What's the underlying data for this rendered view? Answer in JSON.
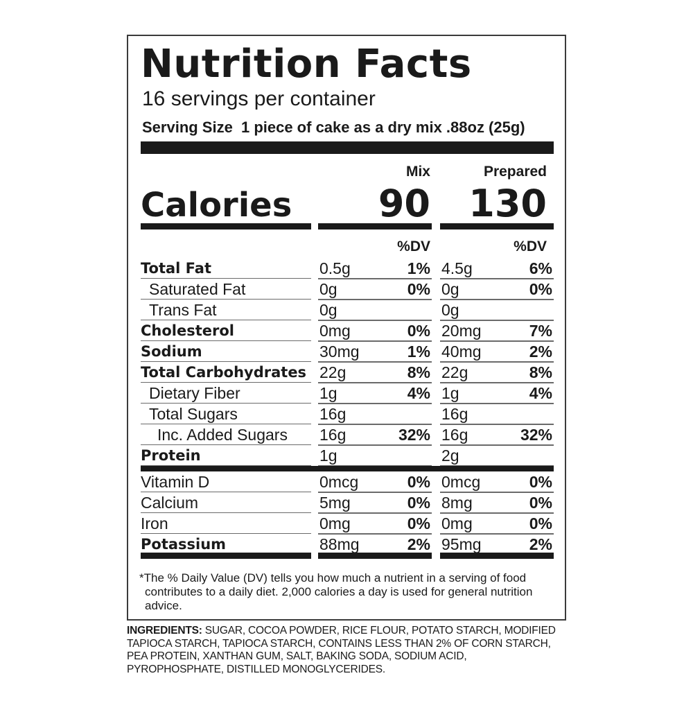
{
  "title": "Nutrition Facts",
  "servings_per_container": "16 servings per container",
  "serving_size_label": "Serving Size",
  "serving_size_value": "1 piece of cake as a dry mix .88oz (25g)",
  "columns": {
    "mix": "Mix",
    "prepared": "Prepared"
  },
  "calories": {
    "label": "Calories",
    "mix": "90",
    "prepared": "130"
  },
  "dv_header": "%DV",
  "nutrients": [
    {
      "name": "Total Fat",
      "mix_amount": "0.5g",
      "mix_dv": "1%",
      "prep_amount": "4.5g",
      "prep_dv": "6%"
    },
    {
      "name": "Saturated Fat",
      "mix_amount": "0g",
      "mix_dv": "0%",
      "prep_amount": "0g",
      "prep_dv": "0%"
    },
    {
      "name": "Trans Fat",
      "mix_amount": "0g",
      "mix_dv": "",
      "prep_amount": "0g",
      "prep_dv": ""
    },
    {
      "name": "Cholesterol",
      "mix_amount": "0mg",
      "mix_dv": "0%",
      "prep_amount": "20mg",
      "prep_dv": "7%"
    },
    {
      "name": "Sodium",
      "mix_amount": "30mg",
      "mix_dv": "1%",
      "prep_amount": "40mg",
      "prep_dv": "2%"
    },
    {
      "name": "Total Carbohydrates",
      "mix_amount": "22g",
      "mix_dv": "8%",
      "prep_amount": "22g",
      "prep_dv": "8%"
    },
    {
      "name": "Dietary Fiber",
      "mix_amount": "1g",
      "mix_dv": "4%",
      "prep_amount": "1g",
      "prep_dv": "4%"
    },
    {
      "name": "Total Sugars",
      "mix_amount": "16g",
      "mix_dv": "",
      "prep_amount": "16g",
      "prep_dv": ""
    },
    {
      "name": "Inc. Added Sugars",
      "mix_amount": "16g",
      "mix_dv": "32%",
      "prep_amount": "16g",
      "prep_dv": "32%"
    },
    {
      "name": "Protein",
      "mix_amount": "1g",
      "mix_dv": "",
      "prep_amount": "2g",
      "prep_dv": ""
    }
  ],
  "vitamins": [
    {
      "name": "Vitamin D",
      "mix_amount": "0mcg",
      "mix_dv": "0%",
      "prep_amount": "0mcg",
      "prep_dv": "0%"
    },
    {
      "name": "Calcium",
      "mix_amount": "5mg",
      "mix_dv": "0%",
      "prep_amount": "8mg",
      "prep_dv": "0%"
    },
    {
      "name": "Iron",
      "mix_amount": "0mg",
      "mix_dv": "0%",
      "prep_amount": "0mg",
      "prep_dv": "0%"
    },
    {
      "name": "Potassium",
      "mix_amount": "88mg",
      "mix_dv": "2%",
      "prep_amount": "95mg",
      "prep_dv": "2%"
    }
  ],
  "footnote": "*The % Daily Value (DV) tells you how much a nutrient in a serving of food contributes to a daily diet. 2,000 calories a day is used for general nutrition advice.",
  "ingredients_label": "INGREDIENTS:",
  "ingredients_text": "SUGAR, COCOA POWDER, RICE FLOUR, POTATO STARCH, MODIFIED TAPIOCA STARCH, TAPIOCA STARCH, CONTAINS LESS THAN 2% OF CORN STARCH, PEA PROTEIN, XANTHAN GUM, SALT, BAKING SODA, SODIUM ACID, PYROPHOSPHATE, DISTILLED MONOGLYCERIDES."
}
